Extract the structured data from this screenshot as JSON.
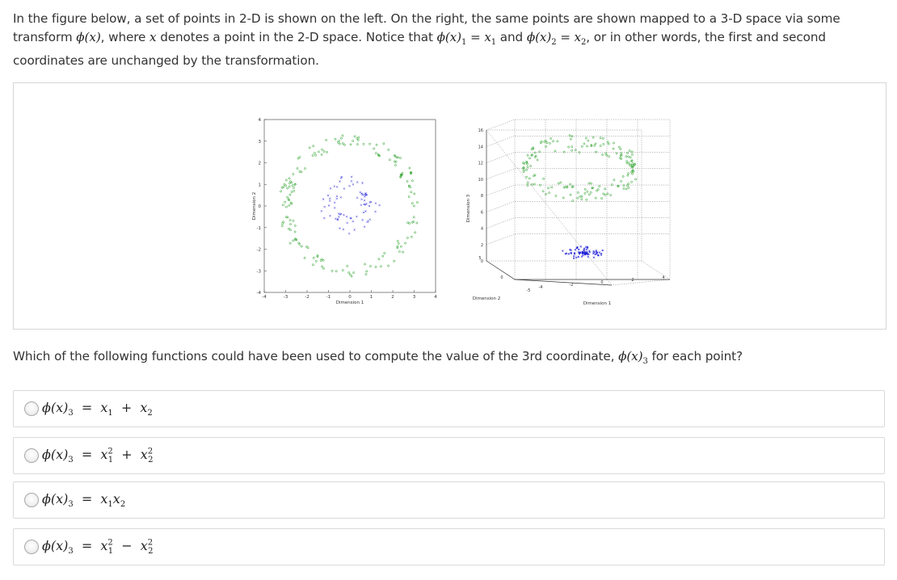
{
  "intro": {
    "line1": "In the figure below, a set of points in 2-D is shown on the left. On the right, the same points are shown mapped to a 3-D space via some",
    "line2_pre": "transform",
    "phi_x": "ϕ(x)",
    "line2_mid1": ", where",
    "x_var": "x",
    "line2_mid2": "denotes a point in the 2-D space. Notice that",
    "eq1_lhs": "ϕ(x)",
    "eq1_sub": "1",
    "eq1_rhs": "= x",
    "eq1_rhs_sub": "1",
    "and_word": "and",
    "eq2_lhs": "ϕ(x)",
    "eq2_sub": "2",
    "eq2_rhs": "= x",
    "eq2_rhs_sub": "2",
    "line2_end": ", or in other words, the first and second",
    "line3": "coordinates are unchanged by the transformation."
  },
  "figure": {
    "left_plot": {
      "ylabel": "Dimension 2",
      "xlabel": "Dimension 1",
      "yticks": [
        "4",
        "3",
        "2",
        "1",
        "0",
        "-1",
        "-2",
        "-3",
        "-4"
      ],
      "xticks": [
        "-4",
        "-3",
        "-2",
        "-1",
        "0",
        "1",
        "2",
        "3",
        "4"
      ]
    },
    "right_plot": {
      "zlabel": "Dimension 3",
      "ylabel": "Dimension 2",
      "xlabel": "Dimension 1",
      "zticks": [
        "16",
        "14",
        "12",
        "10",
        "8",
        "6",
        "4",
        "2",
        "0"
      ],
      "yticks": [
        "5",
        "0",
        "-5"
      ],
      "xticks": [
        "-4",
        "-2",
        "0",
        "2",
        "4"
      ]
    },
    "outer_color": "#1a9a1a",
    "inner_color": "#1f1fd6"
  },
  "question": {
    "text_pre": "Which of the following functions could have been used to compute the value of the 3rd coordinate,",
    "phi": "ϕ(x)",
    "phi_sub": "3",
    "text_post": "for each point?"
  },
  "options": [
    {
      "lhs": "ϕ(x)",
      "lhs_sub": "3",
      "a": "x",
      "a_sub": "1",
      "a_sup": "",
      "op": "+",
      "b": "x",
      "b_sub": "2",
      "b_sup": ""
    },
    {
      "lhs": "ϕ(x)",
      "lhs_sub": "3",
      "a": "x",
      "a_sub": "1",
      "a_sup": "2",
      "op": "+",
      "b": "x",
      "b_sub": "2",
      "b_sup": "2"
    },
    {
      "lhs": "ϕ(x)",
      "lhs_sub": "3",
      "a": "x",
      "a_sub": "1",
      "a_sup": "",
      "op": "",
      "b": "x",
      "b_sub": "2",
      "b_sup": ""
    },
    {
      "lhs": "ϕ(x)",
      "lhs_sub": "3",
      "a": "x",
      "a_sub": "1",
      "a_sup": "2",
      "op": "−",
      "b": "x",
      "b_sub": "2",
      "b_sup": "2"
    }
  ]
}
